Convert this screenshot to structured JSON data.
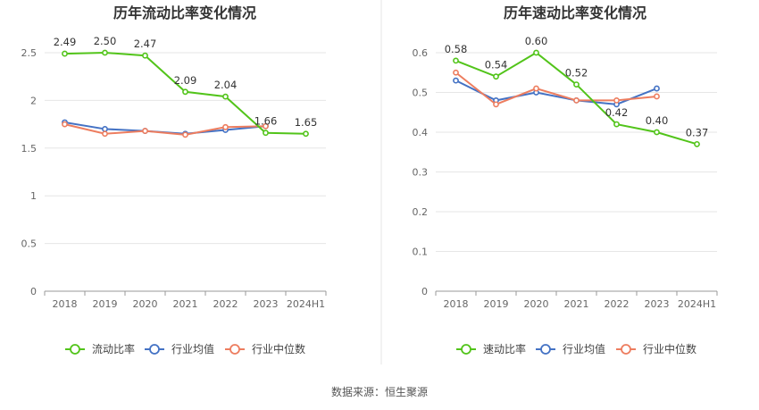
{
  "footer": {
    "source": "数据来源：恒生聚源"
  },
  "colors": {
    "main": "#52c41a",
    "avg": "#4472c4",
    "median": "#ed7d5f",
    "grid": "#e6e6e6",
    "axis": "#999999",
    "divider": "#e5e5e5"
  },
  "chart_data": [
    {
      "type": "line",
      "title": "历年流动比率变化情况",
      "categories": [
        "2018",
        "2019",
        "2020",
        "2021",
        "2022",
        "2023",
        "2024H1"
      ],
      "ylim": [
        0,
        2.5
      ],
      "yticks": [
        "0",
        "0.5",
        "1",
        "1.5",
        "2",
        "2.5"
      ],
      "grid": true,
      "legend_position": "bottom",
      "series": [
        {
          "name": "流动比率",
          "values": [
            2.49,
            2.5,
            2.47,
            2.09,
            2.04,
            1.66,
            1.65
          ],
          "labels": [
            "2.49",
            "2.50",
            "2.47",
            "2.09",
            "2.04",
            "1.66",
            "1.65"
          ]
        },
        {
          "name": "行业均值",
          "values": [
            1.77,
            1.7,
            1.68,
            1.65,
            1.69,
            1.73,
            null
          ]
        },
        {
          "name": "行业中位数",
          "values": [
            1.75,
            1.65,
            1.68,
            1.64,
            1.72,
            1.73,
            null
          ]
        }
      ]
    },
    {
      "type": "line",
      "title": "历年速动比率变化情况",
      "categories": [
        "2018",
        "2019",
        "2020",
        "2021",
        "2022",
        "2023",
        "2024H1"
      ],
      "ylim": [
        0,
        0.6
      ],
      "yticks": [
        "0",
        "0.1",
        "0.2",
        "0.3",
        "0.4",
        "0.5",
        "0.6"
      ],
      "grid": true,
      "legend_position": "bottom",
      "series": [
        {
          "name": "速动比率",
          "values": [
            0.58,
            0.54,
            0.6,
            0.52,
            0.42,
            0.4,
            0.37
          ],
          "labels": [
            "0.58",
            "0.54",
            "0.60",
            "0.52",
            "0.42",
            "0.40",
            "0.37"
          ]
        },
        {
          "name": "行业均值",
          "values": [
            0.53,
            0.48,
            0.5,
            0.48,
            0.47,
            0.51,
            null
          ]
        },
        {
          "name": "行业中位数",
          "values": [
            0.55,
            0.47,
            0.51,
            0.48,
            0.48,
            0.49,
            null
          ]
        }
      ]
    }
  ]
}
